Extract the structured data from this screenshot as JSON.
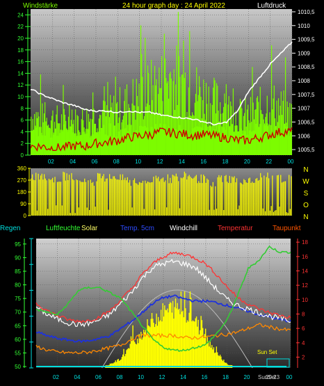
{
  "title": "24 hour graph day : 24 April 2022",
  "colors": {
    "wind": "#7CFC00",
    "gust": "#CC0000",
    "pressure": "#FFFFFF",
    "direction": "#FFFF00",
    "humidity": "#33CC33",
    "solar": "#FFFF00",
    "soil_temp": "#1E32DC",
    "windchill": "#FFFFFF",
    "temperature": "#FF3333",
    "dewpoint": "#FF8800",
    "rain": "#00DDDD",
    "axis_cyan": "#00E0E0",
    "axis_green": "#33FF33",
    "axis_red": "#FF3333"
  },
  "legend": {
    "regen": "Regen",
    "luftfeuchte": "Luftfeuchte",
    "solar": "Solar",
    "temp5cm": "Temp. 5cm",
    "windchill": "Windchill",
    "temperatur": "Temperatur",
    "taupunkt": "Taupunkt"
  },
  "labels": {
    "sun_set": "Sun Set",
    "sun_set_bottom": "SunSet",
    "sun_set_time": "20:23"
  },
  "chart_data": [
    {
      "type": "line",
      "name": "wind",
      "title": "24 hour graph day : 24 April 2022",
      "ylabel_left": "Windstärke",
      "ylabel_right": "Luftdruck",
      "x_ticks": [
        "02",
        "04",
        "06",
        "08",
        "10",
        "12",
        "14",
        "16",
        "18",
        "20",
        "22",
        "00"
      ],
      "y_left_ticks": [
        0,
        2,
        4,
        6,
        8,
        10,
        12,
        14,
        16,
        18,
        20,
        22,
        24
      ],
      "y_left_lim": [
        0,
        25
      ],
      "y_right_ticks": [
        "1005,5",
        "1006",
        "1006,5",
        "1007",
        "1007,5",
        "1008",
        "1008,5",
        "1009",
        "1009,5",
        "1010",
        "1010,5"
      ],
      "y_right_lim": [
        1005.3,
        1010.6
      ],
      "x": [
        0,
        1,
        2,
        3,
        4,
        5,
        6,
        7,
        8,
        9,
        10,
        11,
        12,
        13,
        14,
        15,
        16,
        17,
        18,
        19,
        20,
        21,
        22,
        23,
        24
      ],
      "series": [
        {
          "name": "Windstärke",
          "values": [
            6,
            5.5,
            5.5,
            5,
            5,
            5.5,
            6,
            6,
            7,
            8,
            9,
            10,
            11,
            12,
            11,
            10,
            9,
            8,
            7,
            6,
            6,
            7,
            8,
            7,
            6
          ]
        },
        {
          "name": "",
          "values": [
            1.5,
            1.5,
            1.2,
            1.3,
            1.6,
            1.5,
            2,
            2.2,
            2.5,
            3,
            3.3,
            3.5,
            4,
            3.8,
            3.6,
            3.4,
            3.5,
            3.2,
            3,
            2.5,
            2.5,
            3,
            3.5,
            4,
            4
          ]
        },
        {
          "name": "Luftdruck",
          "values": [
            1007.7,
            1007.5,
            1007.35,
            1007.2,
            1007.1,
            1006.95,
            1006.9,
            1006.9,
            1006.85,
            1006.9,
            1006.85,
            1006.85,
            1006.75,
            1006.7,
            1006.65,
            1006.6,
            1006.5,
            1006.4,
            1006.5,
            1006.9,
            1007.6,
            1008.1,
            1008.6,
            1009.0,
            1009.4
          ]
        }
      ]
    },
    {
      "type": "bar",
      "name": "direction",
      "y_ticks": [
        0,
        90,
        180,
        270,
        360
      ],
      "y_lim": [
        0,
        360
      ],
      "compass": [
        "N",
        "W",
        "S",
        "O",
        "N"
      ],
      "hourly_mean_deg": [
        300,
        290,
        280,
        300,
        270,
        260,
        290,
        300,
        280,
        250,
        260,
        270,
        280,
        290,
        300,
        280,
        250,
        290,
        280,
        270,
        260,
        300,
        290,
        280
      ]
    },
    {
      "type": "line",
      "name": "climate",
      "x_ticks": [
        "02",
        "04",
        "06",
        "08",
        "10",
        "12",
        "14",
        "16",
        "18",
        "20",
        "22",
        "00"
      ],
      "y_left_ticks": [
        50,
        55,
        60,
        65,
        70,
        75,
        80,
        85,
        90,
        95
      ],
      "y_left_lim": [
        49.5,
        97
      ],
      "y_right_ticks": [
        2,
        4,
        6,
        8,
        10,
        12,
        14,
        16,
        18
      ],
      "y_right_lim": [
        0.5,
        18.5
      ],
      "x": [
        0,
        1,
        2,
        3,
        4,
        5,
        6,
        7,
        8,
        9,
        10,
        11,
        12,
        13,
        14,
        15,
        16,
        17,
        18,
        19,
        20,
        21,
        22,
        23,
        24
      ],
      "series": [
        {
          "name": "Luftfeuchte",
          "values": [
            71,
            70,
            69,
            73,
            78,
            79,
            79,
            77,
            75,
            70,
            65,
            60,
            57,
            56,
            56,
            57,
            58,
            62,
            67,
            76,
            86,
            89,
            94,
            92,
            92
          ]
        },
        {
          "name": "Temp. 5cm",
          "values": [
            5.5,
            5,
            4.6,
            4.4,
            4.2,
            4.3,
            4.6,
            5,
            6,
            7,
            8.2,
            9.5,
            10.3,
            10.5,
            10.1,
            9.8,
            9.8,
            9.6,
            9.2,
            8.8,
            8.4,
            7.9,
            7.6,
            7.2,
            7
          ]
        },
        {
          "name": "Windchill",
          "values": [
            9,
            8,
            7.3,
            6.8,
            6.5,
            6.7,
            7.2,
            8,
            9.5,
            11,
            13,
            14.5,
            15,
            15.3,
            15,
            14.5,
            13,
            11.5,
            10,
            9.2,
            8.7,
            8.2,
            7.7,
            7.4,
            7
          ]
        },
        {
          "name": "Temperatur",
          "values": [
            9.5,
            8.5,
            7.8,
            7.2,
            7,
            7.1,
            7.6,
            8.5,
            10,
            11.5,
            13.5,
            15,
            16,
            16.5,
            16.3,
            15.8,
            15,
            13.5,
            11.8,
            10.3,
            9.4,
            8.7,
            8.2,
            7.8,
            7.5
          ]
        },
        {
          "name": "Taupunkt",
          "values": [
            3.5,
            3,
            2.7,
            2.6,
            2.6,
            2.7,
            3,
            3.3,
            3.7,
            4.5,
            5,
            5,
            5,
            5,
            4.7,
            4.7,
            4.8,
            5,
            5.2,
            5.5,
            6,
            6.5,
            6.2,
            5.9,
            5.7
          ]
        },
        {
          "name": "Solar",
          "values": [
            0,
            0,
            0,
            0,
            0,
            0,
            0,
            5,
            12,
            30,
            45,
            62,
            72,
            78,
            75,
            60,
            40,
            20,
            5,
            0,
            0,
            0,
            0,
            0,
            0
          ]
        },
        {
          "name": "Regen",
          "values": [
            0,
            0,
            0,
            0,
            0,
            0,
            0,
            0,
            0,
            0,
            0,
            0,
            0,
            0,
            0,
            0,
            0,
            0,
            0,
            0,
            0,
            0,
            0,
            0,
            0
          ]
        }
      ]
    }
  ]
}
